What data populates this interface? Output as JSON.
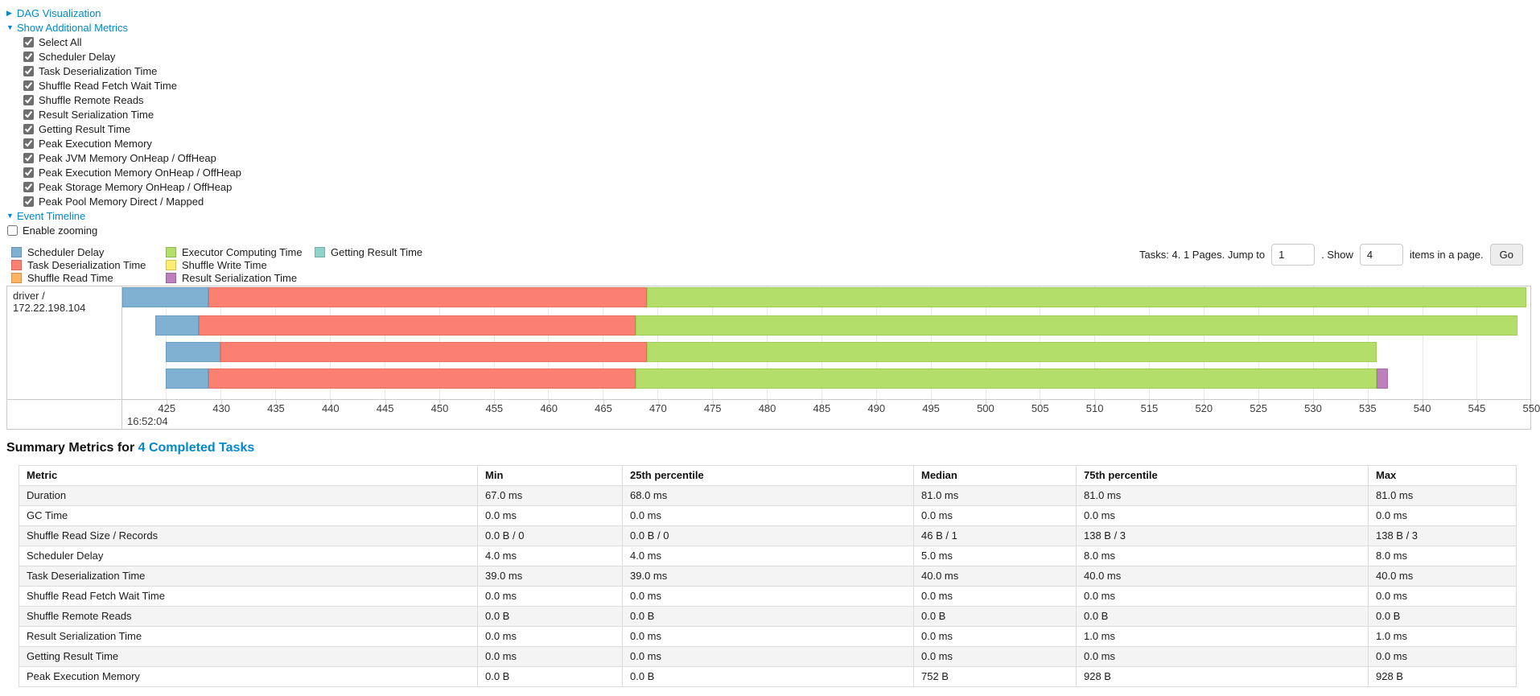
{
  "controls": {
    "dag": {
      "arrow": "▶",
      "label": "DAG Visualization"
    },
    "additional_metrics": {
      "arrow": "▼",
      "label": "Show Additional Metrics",
      "checkboxes": [
        {
          "label": "Select All",
          "checked": true
        },
        {
          "label": "Scheduler Delay",
          "checked": true
        },
        {
          "label": "Task Deserialization Time",
          "checked": true
        },
        {
          "label": "Shuffle Read Fetch Wait Time",
          "checked": true
        },
        {
          "label": "Shuffle Remote Reads",
          "checked": true
        },
        {
          "label": "Result Serialization Time",
          "checked": true
        },
        {
          "label": "Getting Result Time",
          "checked": true
        },
        {
          "label": "Peak Execution Memory",
          "checked": true
        },
        {
          "label": "Peak JVM Memory OnHeap / OffHeap",
          "checked": true
        },
        {
          "label": "Peak Execution Memory OnHeap / OffHeap",
          "checked": true
        },
        {
          "label": "Peak Storage Memory OnHeap / OffHeap",
          "checked": true
        },
        {
          "label": "Peak Pool Memory Direct / Mapped",
          "checked": true
        }
      ]
    },
    "event_timeline": {
      "arrow": "▼",
      "label": "Event Timeline"
    },
    "enable_zooming": {
      "label": "Enable zooming",
      "checked": false
    }
  },
  "legend": {
    "columns": [
      [
        {
          "label": "Scheduler Delay",
          "color": "#80B1D3"
        },
        {
          "label": "Task Deserialization Time",
          "color": "#FB8072"
        },
        {
          "label": "Shuffle Read Time",
          "color": "#FDB462"
        }
      ],
      [
        {
          "label": "Executor Computing Time",
          "color": "#B3DE69"
        },
        {
          "label": "Shuffle Write Time",
          "color": "#FFED6F"
        },
        {
          "label": "Result Serialization Time",
          "color": "#BC80BD"
        }
      ],
      [
        {
          "label": "Getting Result Time",
          "color": "#8DD3C7"
        }
      ]
    ]
  },
  "pagination": {
    "tasks_text": "Tasks: 4. 1 Pages. Jump to",
    "jump_value": "1",
    "show_text": ". Show",
    "show_value": "4",
    "suffix_text": "items in a page.",
    "go_label": "Go"
  },
  "timeline": {
    "group_label": "driver / 172.22.198.104",
    "axis": {
      "range_start": 421.0,
      "range_end": 549.9,
      "tick_labels": [
        425,
        430,
        435,
        440,
        445,
        450,
        455,
        460,
        465,
        470,
        475,
        480,
        485,
        490,
        495,
        500,
        505,
        510,
        515,
        520,
        525,
        530,
        535,
        540,
        545,
        550
      ],
      "major_label": "16:52:04"
    },
    "colors": {
      "scheduler-delay": {
        "fill": "#80B1D3",
        "border": "#6a9dc2"
      },
      "task-deserialization": {
        "fill": "#FB8072",
        "border": "#ea6c5e"
      },
      "shuffle-read": {
        "fill": "#FDB462",
        "border": "#eda14f"
      },
      "executor-computing": {
        "fill": "#B3DE69",
        "border": "#9fcc54"
      },
      "shuffle-write": {
        "fill": "#FFED6F",
        "border": "#ecd95c"
      },
      "result-serialization": {
        "fill": "#BC80BD",
        "border": "#a86ba9"
      },
      "getting-result": {
        "fill": "#8DD3C7",
        "border": "#76c0b3"
      }
    },
    "rows": [
      {
        "segments": [
          {
            "type": "scheduler-delay",
            "start": 421.0,
            "end": 428.9
          },
          {
            "type": "task-deserialization",
            "start": 428.9,
            "end": 469.0
          },
          {
            "type": "executor-computing",
            "start": 469.0,
            "end": 549.5
          }
        ]
      },
      {
        "segments": [
          {
            "type": "scheduler-delay",
            "start": 424.0,
            "end": 428.0
          },
          {
            "type": "task-deserialization",
            "start": 428.0,
            "end": 468.0
          },
          {
            "type": "executor-computing",
            "start": 468.0,
            "end": 548.7
          }
        ]
      },
      {
        "segments": [
          {
            "type": "scheduler-delay",
            "start": 425.0,
            "end": 430.0
          },
          {
            "type": "task-deserialization",
            "start": 430.0,
            "end": 469.0
          },
          {
            "type": "executor-computing",
            "start": 469.0,
            "end": 535.8
          }
        ]
      },
      {
        "segments": [
          {
            "type": "scheduler-delay",
            "start": 425.0,
            "end": 428.9
          },
          {
            "type": "task-deserialization",
            "start": 428.9,
            "end": 468.0
          },
          {
            "type": "executor-computing",
            "start": 468.0,
            "end": 535.8
          },
          {
            "type": "result-serialization",
            "start": 535.8,
            "end": 536.9
          }
        ]
      }
    ]
  },
  "summary": {
    "heading_prefix": "Summary Metrics for ",
    "heading_link": "4 Completed Tasks",
    "headers": [
      "Metric",
      "Min",
      "25th percentile",
      "Median",
      "75th percentile",
      "Max"
    ],
    "rows": [
      [
        "Duration",
        "67.0 ms",
        "68.0 ms",
        "81.0 ms",
        "81.0 ms",
        "81.0 ms"
      ],
      [
        "GC Time",
        "0.0 ms",
        "0.0 ms",
        "0.0 ms",
        "0.0 ms",
        "0.0 ms"
      ],
      [
        "Shuffle Read Size / Records",
        "0.0 B / 0",
        "0.0 B / 0",
        "46 B / 1",
        "138 B / 3",
        "138 B / 3"
      ],
      [
        "Scheduler Delay",
        "4.0 ms",
        "4.0 ms",
        "5.0 ms",
        "8.0 ms",
        "8.0 ms"
      ],
      [
        "Task Deserialization Time",
        "39.0 ms",
        "39.0 ms",
        "40.0 ms",
        "40.0 ms",
        "40.0 ms"
      ],
      [
        "Shuffle Read Fetch Wait Time",
        "0.0 ms",
        "0.0 ms",
        "0.0 ms",
        "0.0 ms",
        "0.0 ms"
      ],
      [
        "Shuffle Remote Reads",
        "0.0 B",
        "0.0 B",
        "0.0 B",
        "0.0 B",
        "0.0 B"
      ],
      [
        "Result Serialization Time",
        "0.0 ms",
        "0.0 ms",
        "0.0 ms",
        "1.0 ms",
        "1.0 ms"
      ],
      [
        "Getting Result Time",
        "0.0 ms",
        "0.0 ms",
        "0.0 ms",
        "0.0 ms",
        "0.0 ms"
      ],
      [
        "Peak Execution Memory",
        "0.0 B",
        "0.0 B",
        "752 B",
        "928 B",
        "928 B"
      ]
    ]
  }
}
